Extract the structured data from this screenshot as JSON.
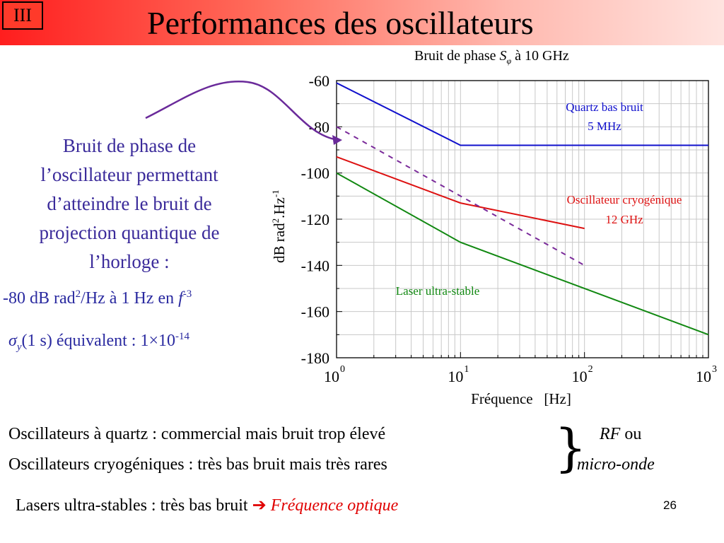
{
  "header": {
    "section_label": "III",
    "title": "Performances des oscillateurs"
  },
  "chart_data": {
    "type": "line",
    "title": "Bruit de phase",
    "title_symbol": "S",
    "title_subscript": "φ",
    "title_suffix": "à 10 GHz",
    "xlabel": "Fréquence   [Hz]",
    "ylabel": "dB rad2.Hz-1",
    "xscale": "log",
    "xlim": [
      1,
      1000
    ],
    "ylim": [
      -180,
      -60
    ],
    "x_tick_labels": [
      "10^0",
      "10^1",
      "10^2",
      "10^3"
    ],
    "y_tick_labels": [
      "-60",
      "-80",
      "-100",
      "-120",
      "-140",
      "-160",
      "-180"
    ],
    "grid": true,
    "series": [
      {
        "name": "Quartz bas bruit 5 MHz",
        "color": "#1010cc",
        "style": "solid",
        "x": [
          1,
          10,
          1000
        ],
        "y": [
          -61,
          -88,
          -88
        ]
      },
      {
        "name": "Oscillateur cryogénique 12 GHz",
        "color": "#dd1111",
        "style": "solid",
        "x": [
          1,
          10,
          100
        ],
        "y": [
          -93,
          -113,
          -124
        ]
      },
      {
        "name": "Laser ultra-stable",
        "color": "#118811",
        "style": "solid",
        "x": [
          1,
          10,
          1000
        ],
        "y": [
          -100,
          -130,
          -170
        ]
      },
      {
        "name": "",
        "color": "#7a2a9a",
        "style": "dashed",
        "x": [
          1,
          100
        ],
        "y": [
          -80,
          -140
        ]
      }
    ],
    "annotations": {
      "quartz_line1": "Quartz bas bruit",
      "quartz_line2": "5 MHz",
      "cryo_line1": "Oscillateur cryogénique",
      "cryo_line2": "12 GHz",
      "laser": "Laser ultra-stable"
    }
  },
  "left_text": {
    "line1": "Bruit de phase de",
    "line2": "l’oscillateur permettant",
    "line3": "d’atteindre le bruit de",
    "line4": "projection quantique de",
    "line5": "l’horloge :",
    "eq1_prefix": "-80 dB rad",
    "eq1_sup": "2",
    "eq1_mid": "/Hz à 1 Hz en ",
    "eq1_f": "f",
    "eq1_fsup": "-3",
    "eq2_sigma": "σ",
    "eq2_sub": "y",
    "eq2_mid": "(1 s) équivalent : 1×10",
    "eq2_sup": "-14"
  },
  "bottom": {
    "line1": "Oscillateurs à quartz : commercial mais bruit trop élevé",
    "line2": "Oscillateurs cryogéniques : très bas bruit mais très rares",
    "rf": "RF",
    "ou": " ou",
    "micro_onde": "micro-onde",
    "line3": "Lasers ultra-stables : très bas bruit",
    "arrow": "➔",
    "freq_optique": "Fréquence optique"
  },
  "colors": {
    "header_start": "#ff1e1e",
    "left_text": "#3a2a9a",
    "accent_red": "#e00000",
    "purple_arrow": "#6a2a9a"
  },
  "page_number": "26"
}
